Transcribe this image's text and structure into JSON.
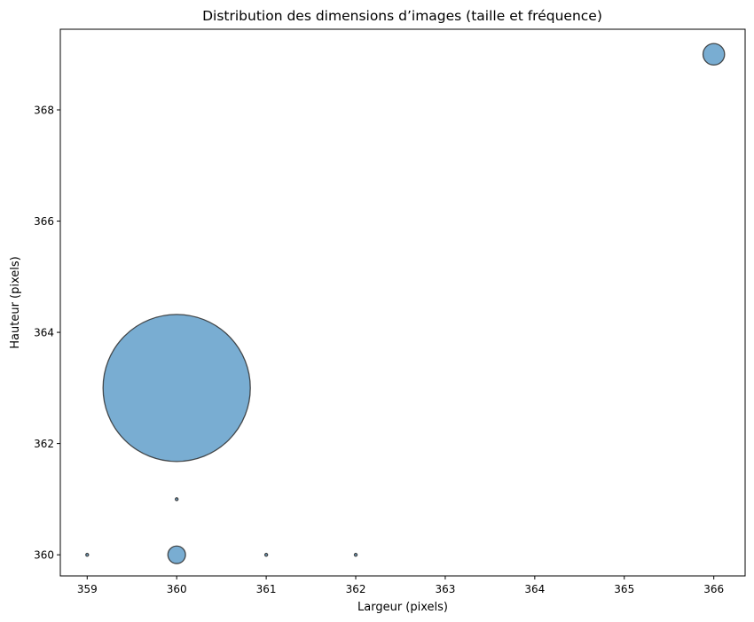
{
  "chart_data": {
    "type": "scatter",
    "title": "Distribution des dimensions d’images (taille et fréquence)",
    "xlabel": "Largeur (pixels)",
    "ylabel": "Hauteur (pixels)",
    "xlim": [
      358.7,
      366.35
    ],
    "ylim": [
      359.62,
      369.45
    ],
    "xticks": [
      359,
      360,
      361,
      362,
      363,
      364,
      365,
      366
    ],
    "yticks": [
      360,
      362,
      364,
      366,
      368
    ],
    "grid": false,
    "legend": "none",
    "colors": {
      "fill": "#1f77b4",
      "edge": "#2e2e2e"
    },
    "points": [
      {
        "x": 359,
        "y": 360,
        "count": 1
      },
      {
        "x": 360,
        "y": 360,
        "count": 40
      },
      {
        "x": 360,
        "y": 361,
        "count": 1
      },
      {
        "x": 360,
        "y": 363,
        "count": 2800
      },
      {
        "x": 361,
        "y": 360,
        "count": 1
      },
      {
        "x": 362,
        "y": 360,
        "count": 1
      },
      {
        "x": 366,
        "y": 369,
        "count": 60
      }
    ]
  }
}
